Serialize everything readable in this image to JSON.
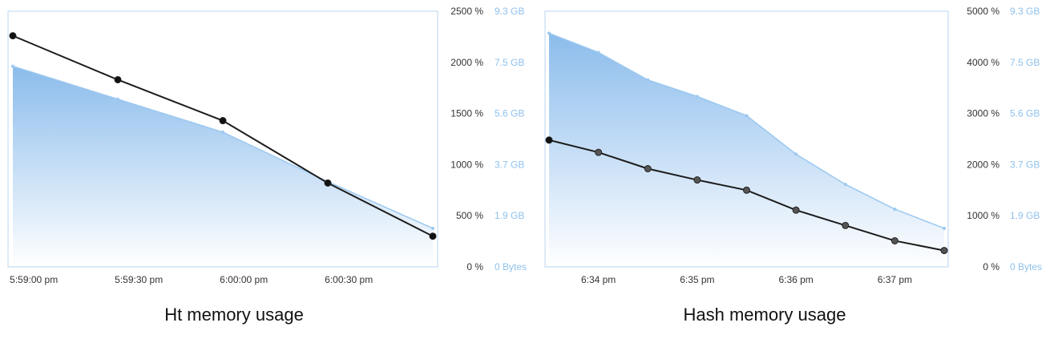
{
  "colors": {
    "area_top": "#8bbcec",
    "area_bottom": "#ffffff",
    "area_line": "#9cc8f0",
    "cpu_line": "#1c1c1c",
    "frame": "#b8d6f0",
    "memory_axis_text": "#8fc1ec"
  },
  "chart_data": [
    {
      "type": "line",
      "title": "Ht memory usage",
      "x_ticks": [
        "5:59:00 pm",
        "5:59:30 pm",
        "6:00:00 pm",
        "6:00:30 pm"
      ],
      "x_tick_positions": [
        0.1,
        0.6,
        1.1,
        1.6
      ],
      "x_range": [
        0.0,
        2.0
      ],
      "cpu_axis": {
        "labels": [
          "2500 %",
          "2000 %",
          "1500 %",
          "1000 %",
          "500 %",
          "0 %"
        ],
        "range": [
          0,
          2500
        ]
      },
      "memory_axis": {
        "labels": [
          "9.3 GB",
          "7.5 GB",
          "5.6 GB",
          "3.7 GB",
          "1.9 GB",
          "0 Bytes"
        ],
        "range": [
          0,
          9.3
        ]
      },
      "series": [
        {
          "values_x": [
            0.0,
            0.5,
            1.0,
            1.5,
            2.0
          ],
          "values_y": [
            2260,
            1830,
            1430,
            820,
            300
          ]
        },
        {
          "values_x": [
            0.0,
            0.5,
            1.0,
            1.5,
            2.0
          ],
          "values_y": [
            7.3,
            6.1,
            4.9,
            3.1,
            1.4
          ]
        }
      ]
    },
    {
      "type": "line",
      "title": "Hash memory usage",
      "x_ticks": [
        "6:34 pm",
        "6:35 pm",
        "6:36 pm",
        "6:37 pm"
      ],
      "x_tick_positions": [
        0.5,
        1.5,
        2.5,
        3.5
      ],
      "x_range": [
        0.0,
        4.0
      ],
      "cpu_axis": {
        "labels": [
          "5000 %",
          "4000 %",
          "3000 %",
          "2000 %",
          "1000 %",
          "0 %"
        ],
        "range": [
          0,
          5000
        ]
      },
      "memory_axis": {
        "labels": [
          "9.3 GB",
          "7.5 GB",
          "5.6 GB",
          "3.7 GB",
          "1.9 GB",
          "0 Bytes"
        ],
        "range": [
          0,
          9.3
        ]
      },
      "series": [
        {
          "values_x": [
            0.0,
            0.5,
            1.0,
            1.5,
            2.0,
            2.5,
            3.0,
            3.5,
            4.0
          ],
          "values_y": [
            2480,
            2240,
            1920,
            1700,
            1500,
            1110,
            810,
            510,
            320
          ]
        },
        {
          "values_x": [
            0.0,
            0.5,
            1.0,
            1.5,
            2.0,
            2.5,
            3.0,
            3.5,
            4.0
          ],
          "values_y": [
            8.5,
            7.8,
            6.8,
            6.2,
            5.5,
            4.1,
            3.0,
            2.1,
            1.4
          ]
        }
      ]
    }
  ]
}
